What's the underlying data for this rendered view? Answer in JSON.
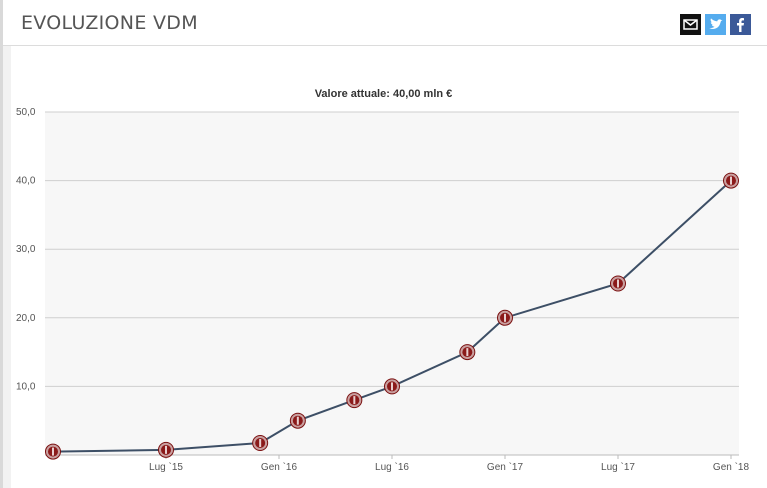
{
  "header": {
    "title": "EVOLUZIONE VDM",
    "share_icons": [
      "mail-icon",
      "twitter-icon",
      "facebook-icon"
    ]
  },
  "chart_data": {
    "type": "line",
    "title": "Valore attuale: 40,00 mln €",
    "xlabel": "",
    "ylabel": "",
    "ylim": [
      0,
      50
    ],
    "yticks": [
      "10,0",
      "20,0",
      "30,0",
      "40,0",
      "50,0"
    ],
    "xticks": [
      "Lug `15",
      "Gen `16",
      "Lug `16",
      "Gen `17",
      "Lug `17",
      "Gen `18"
    ],
    "series": [
      {
        "x": [
          "2015-01",
          "2015-07",
          "2015-12",
          "2016-02",
          "2016-05",
          "2016-07",
          "2016-11",
          "2017-01",
          "2017-07",
          "2018-01"
        ],
        "values": [
          0.5,
          0.75,
          1.75,
          5,
          8,
          10,
          15,
          20,
          25,
          40
        ]
      }
    ],
    "grid": true,
    "line_color": "#3d4f66",
    "marker_color": "#8b1a1a"
  }
}
